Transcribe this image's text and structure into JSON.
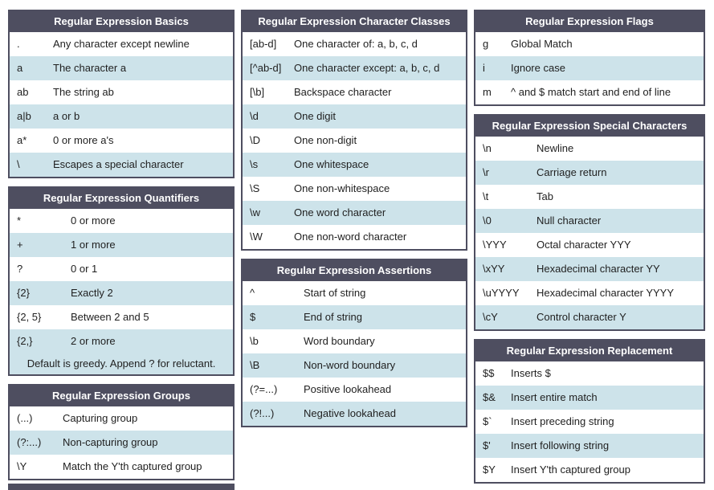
{
  "theme": {
    "header_bg": "#4e4e60",
    "row_bg": "#ffffff",
    "row_alt_bg": "#cde3ea",
    "text_color": "#1f1f1f",
    "header_text_color": "#ffffff"
  },
  "tables": {
    "basics": {
      "title": "Regular Expression Basics",
      "rows": [
        {
          "code": ".",
          "desc": "Any character except newline"
        },
        {
          "code": "a",
          "desc": "The character a"
        },
        {
          "code": "ab",
          "desc": "The string ab"
        },
        {
          "code": "a|b",
          "desc": "a or b"
        },
        {
          "code": "a*",
          "desc": "0 or more a's"
        },
        {
          "code": "\\",
          "desc": "Escapes a special character"
        }
      ]
    },
    "quantifiers": {
      "title": "Regular Expression Quantifiers",
      "rows": [
        {
          "code": "*",
          "desc": "0 or more"
        },
        {
          "code": "+",
          "desc": "1 or more"
        },
        {
          "code": "?",
          "desc": "0 or 1"
        },
        {
          "code": "{2}",
          "desc": "Exactly 2"
        },
        {
          "code": "{2, 5}",
          "desc": "Between 2 and 5"
        },
        {
          "code": "{2,}",
          "desc": "2 or more"
        }
      ],
      "footer": "Default is greedy. Append ? for reluctant."
    },
    "groups": {
      "title": "Regular Expression Groups",
      "rows": [
        {
          "code": "(...)",
          "desc": "Capturing group"
        },
        {
          "code": "(?:...)",
          "desc": "Non-capturing group"
        },
        {
          "code": "\\Y",
          "desc": "Match the Y'th captured group"
        }
      ]
    },
    "classes": {
      "title": "Regular Expression Character Classes",
      "rows": [
        {
          "code": "[ab-d]",
          "desc": "One character of: a, b, c, d"
        },
        {
          "code": "[^ab-d]",
          "desc": "One character except: a, b, c, d"
        },
        {
          "code": "[\\b]",
          "desc": "Backspace character"
        },
        {
          "code": "\\d",
          "desc": "One digit"
        },
        {
          "code": "\\D",
          "desc": "One non-digit"
        },
        {
          "code": "\\s",
          "desc": "One whitespace"
        },
        {
          "code": "\\S",
          "desc": "One non-whitespace"
        },
        {
          "code": "\\w",
          "desc": "One word character"
        },
        {
          "code": "\\W",
          "desc": "One non-word character"
        }
      ]
    },
    "assertions": {
      "title": "Regular Expression Assertions",
      "rows": [
        {
          "code": "^",
          "desc": "Start of string"
        },
        {
          "code": "$",
          "desc": "End of string"
        },
        {
          "code": "\\b",
          "desc": "Word boundary"
        },
        {
          "code": "\\B",
          "desc": "Non-word boundary"
        },
        {
          "code": "(?=...)",
          "desc": "Positive lookahead"
        },
        {
          "code": "(?!...)",
          "desc": "Negative lookahead"
        }
      ]
    },
    "flags": {
      "title": "Regular Expression Flags",
      "rows": [
        {
          "code": "g",
          "desc": "Global Match"
        },
        {
          "code": "i",
          "desc": "Ignore case"
        },
        {
          "code": "m",
          "desc": "^ and $ match start and end of line"
        }
      ]
    },
    "special": {
      "title": "Regular Expression Special Characters",
      "rows": [
        {
          "code": "\\n",
          "desc": "Newline"
        },
        {
          "code": "\\r",
          "desc": "Carriage return"
        },
        {
          "code": "\\t",
          "desc": "Tab"
        },
        {
          "code": "\\0",
          "desc": "Null character"
        },
        {
          "code": "\\YYY",
          "desc": "Octal character YYY"
        },
        {
          "code": "\\xYY",
          "desc": "Hexadecimal character YY"
        },
        {
          "code": "\\uYYYY",
          "desc": "Hexadecimal character YYYY"
        },
        {
          "code": "\\cY",
          "desc": "Control character Y"
        }
      ]
    },
    "replacement": {
      "title": "Regular Expression Replacement",
      "rows": [
        {
          "code": "$$",
          "desc": "Inserts $"
        },
        {
          "code": "$&",
          "desc": "Insert entire match"
        },
        {
          "code": "$`",
          "desc": "Insert preceding string"
        },
        {
          "code": "$'",
          "desc": "Insert following string"
        },
        {
          "code": "$Y",
          "desc": "Insert Y'th captured group"
        }
      ]
    }
  }
}
